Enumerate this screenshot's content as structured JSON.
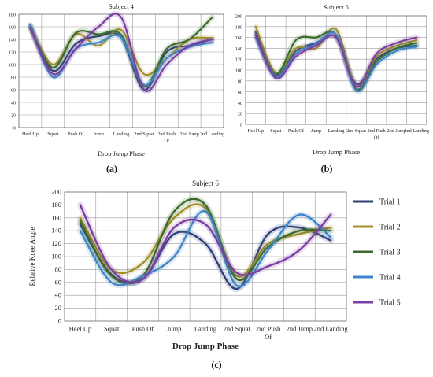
{
  "colors": {
    "trial1": "#2f3f78",
    "trial2": "#a18e2e",
    "trial3": "#3a6b2a",
    "trial4": "#3f86c8",
    "trial5": "#7a3fa3",
    "grid": "#9a9a9a"
  },
  "chart_data": [
    {
      "type": "line",
      "title": "Subject 4",
      "panel_label": "(a)",
      "xlabel": "Drop Jump Phase",
      "ylabel": "",
      "ylim": [
        0,
        180
      ],
      "yticks": [
        0,
        20,
        40,
        60,
        80,
        100,
        120,
        140,
        160,
        180
      ],
      "categories": [
        "Heel Up",
        "Squat",
        "Push Of",
        "Jump",
        "Landing",
        "2nd Squat",
        "2nd Push Of",
        "2nd Jump",
        "2nd Landing"
      ],
      "legend": "none",
      "series": [
        {
          "values": [
            163,
            90,
            133,
            145,
            143,
            60,
            120,
            130,
            140
          ]
        },
        {
          "values": [
            160,
            100,
            148,
            130,
            155,
            85,
            110,
            140,
            142
          ]
        },
        {
          "values": [
            158,
            95,
            150,
            148,
            147,
            65,
            125,
            140,
            175
          ]
        },
        {
          "values": [
            162,
            80,
            125,
            135,
            143,
            68,
            110,
            128,
            135
          ]
        },
        {
          "values": [
            158,
            85,
            125,
            160,
            175,
            60,
            100,
            130,
            140
          ]
        }
      ]
    },
    {
      "type": "line",
      "title": "Subject 5",
      "panel_label": "(b)",
      "xlabel": "Drop Jump Phase",
      "ylabel": "",
      "ylim": [
        0,
        200
      ],
      "yticks": [
        0,
        20,
        40,
        60,
        80,
        100,
        120,
        140,
        160,
        180,
        200
      ],
      "categories": [
        "Heel Up",
        "Squat",
        "Push Of",
        "Jump",
        "Landing",
        "2nd Squat",
        "2nd Push Of",
        "2nd Jump",
        "2nd Landing"
      ],
      "legend": "none",
      "series": [
        {
          "values": [
            170,
            90,
            135,
            150,
            160,
            75,
            120,
            140,
            145
          ]
        },
        {
          "values": [
            180,
            95,
            140,
            140,
            175,
            70,
            125,
            145,
            155
          ]
        },
        {
          "values": [
            165,
            92,
            155,
            160,
            165,
            65,
            115,
            140,
            150
          ]
        },
        {
          "values": [
            160,
            88,
            130,
            148,
            165,
            62,
            110,
            135,
            143
          ]
        },
        {
          "values": [
            165,
            85,
            125,
            145,
            160,
            70,
            130,
            150,
            160
          ]
        }
      ]
    },
    {
      "type": "line",
      "title": "Subject 6",
      "panel_label": "(c)",
      "xlabel": "Drop Jump Phase",
      "ylabel": "Relative Knee Angle",
      "ylim": [
        0,
        200
      ],
      "yticks": [
        0,
        20,
        40,
        60,
        80,
        100,
        120,
        140,
        160,
        180,
        200
      ],
      "categories": [
        "Heel Up",
        "Squat",
        "Push Of",
        "Jump",
        "Landing",
        "2nd Squat",
        "2nd Push Of",
        "2nd Jump",
        "2nd Landing"
      ],
      "legend": "right",
      "series": [
        {
          "name": "Trial 1",
          "values": [
            150,
            72,
            65,
            135,
            120,
            50,
            135,
            145,
            125
          ]
        },
        {
          "name": "Trial 2",
          "values": [
            160,
            80,
            90,
            160,
            175,
            70,
            120,
            135,
            145
          ]
        },
        {
          "name": "Trial 3",
          "values": [
            155,
            70,
            70,
            170,
            180,
            65,
            115,
            140,
            140
          ]
        },
        {
          "name": "Trial 4",
          "values": [
            140,
            60,
            70,
            100,
            170,
            55,
            110,
            165,
            130
          ]
        },
        {
          "name": "Trial 5",
          "values": [
            180,
            80,
            65,
            145,
            150,
            75,
            85,
            110,
            165
          ]
        }
      ]
    }
  ]
}
